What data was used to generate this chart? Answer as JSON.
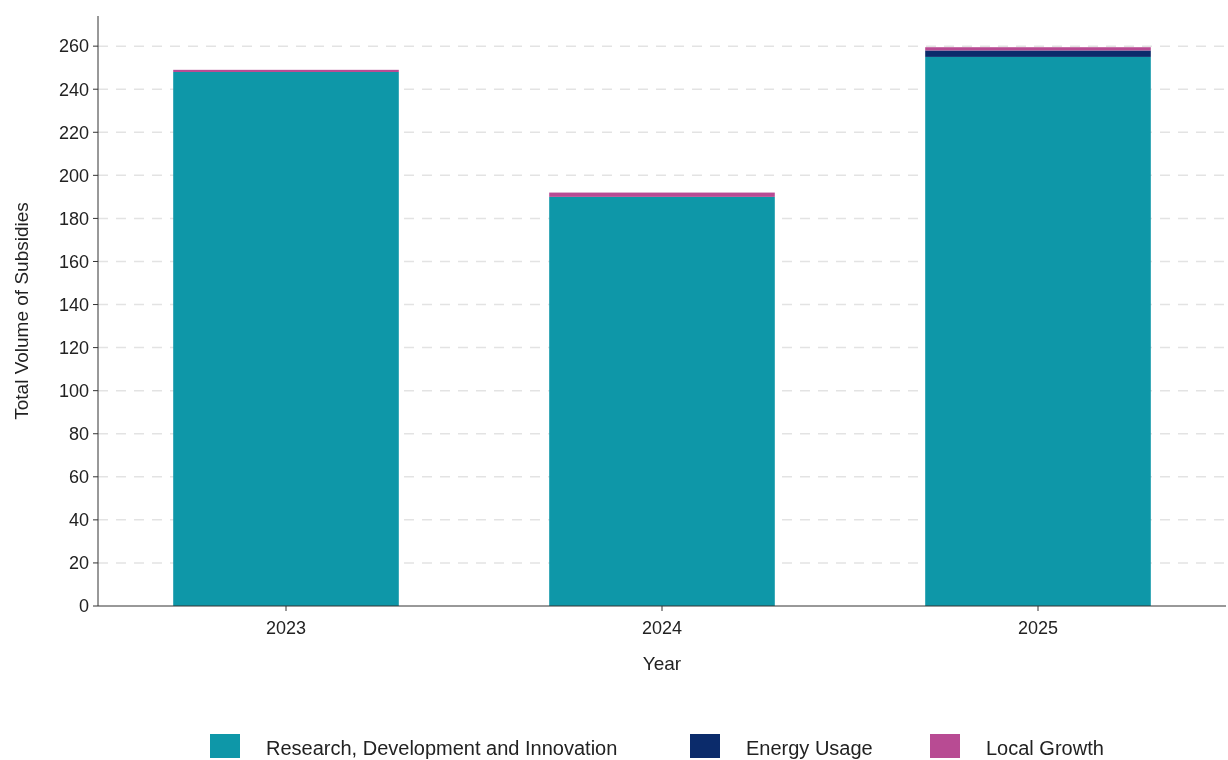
{
  "chart_data": {
    "type": "bar",
    "stacked": true,
    "xlabel": "Year",
    "ylabel": "Total Volume of Subsidies",
    "categories": [
      "2023",
      "2024",
      "2025"
    ],
    "series": [
      {
        "name": "Research, Development and Innovation",
        "color": "#0e97a8",
        "values": [
          248,
          190,
          255
        ]
      },
      {
        "name": "Energy Usage",
        "color": "#0b2b6b",
        "values": [
          0,
          0,
          3
        ]
      },
      {
        "name": "Local Growth",
        "color": "#b84b93",
        "values": [
          1,
          2,
          1.5
        ]
      }
    ],
    "ylim": [
      0,
      274
    ],
    "yticks": [
      0,
      20,
      40,
      60,
      80,
      100,
      120,
      140,
      160,
      180,
      200,
      220,
      240,
      260
    ],
    "grid": "y",
    "legend": "bottom"
  }
}
